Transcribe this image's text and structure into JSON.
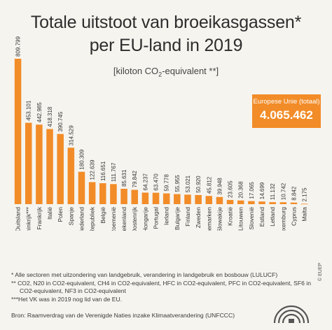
{
  "header": {
    "title_line1": "Totale uitstoot van broeikasgassen*",
    "title_line2": "per EU-land in 2019",
    "unit_prefix": "[kiloton CO",
    "unit_sub": "2",
    "unit_suffix": "-equivalent **]"
  },
  "total": {
    "label": "Europese Unie (totaal)",
    "value": "4.065.462"
  },
  "chart_data": {
    "type": "bar",
    "title": "Totale uitstoot van broeikasgassen* per EU-land in 2019",
    "ylabel": "kiloton CO2-equivalent",
    "categories": [
      "Duitsland",
      "Verenigd Koninkrijk***",
      "Frankrijk",
      "Italië",
      "Polen",
      "Spanje",
      "Nederland",
      "Tsjechische Republiek",
      "België",
      "Roemenië",
      "Griekenland",
      "Oostenrijk",
      "Hongarije",
      "Portugal",
      "Ierland",
      "Bulgarije",
      "Finland",
      "Zweden",
      "Denemarken",
      "Slowakije",
      "Kroatië",
      "Litouwen",
      "Slovenië",
      "Estland",
      "Letland",
      "Luxemburg",
      "Cyprus",
      "Malta"
    ],
    "values": [
      809799,
      453101,
      442985,
      418318,
      390745,
      314529,
      180309,
      122639,
      116651,
      111767,
      85631,
      79842,
      64237,
      63470,
      59778,
      55955,
      53021,
      50920,
      45812,
      39948,
      23605,
      20368,
      17065,
      14699,
      11132,
      10742,
      8842,
      2175
    ],
    "value_labels": [
      "809.799",
      "453.101",
      "442.985",
      "418.318",
      "390.745",
      "314.529",
      "180.309",
      "122.639",
      "116.651",
      "111.767",
      "85.631",
      "79.842",
      "64.237",
      "63.470",
      "59.778",
      "55.955",
      "53.021",
      "50.920",
      "45.812",
      "39.948",
      "23.605",
      "20.368",
      "17.065",
      "14.699",
      "11.132",
      "10.742",
      "8.842",
      "2.175"
    ],
    "ylim": [
      0,
      809799
    ],
    "grid": false,
    "bar_color": "#f28c28"
  },
  "notes": [
    "* Alle sectoren met uitzondering van landgebruik, verandering in landgebruik en bosbouw (LULUCF)",
    "** CO2, N20 in CO2-equivalent, CH4 in CO2-equivalent, HFC in CO2-equivalent, PFC in CO2-equivalent, SF6 in",
    "    CO2-equivalent, NF3 in CO2-equivalent",
    "***Het VK was in 2019 nog lid van de EU."
  ],
  "source": "Bron: Raamverdrag van de Verenigde Naties inzake Klimaatverandering (UNFCCC)",
  "copyright": "© EUEP",
  "colors": {
    "accent": "#f28c28",
    "background": "#f6f4ef"
  }
}
